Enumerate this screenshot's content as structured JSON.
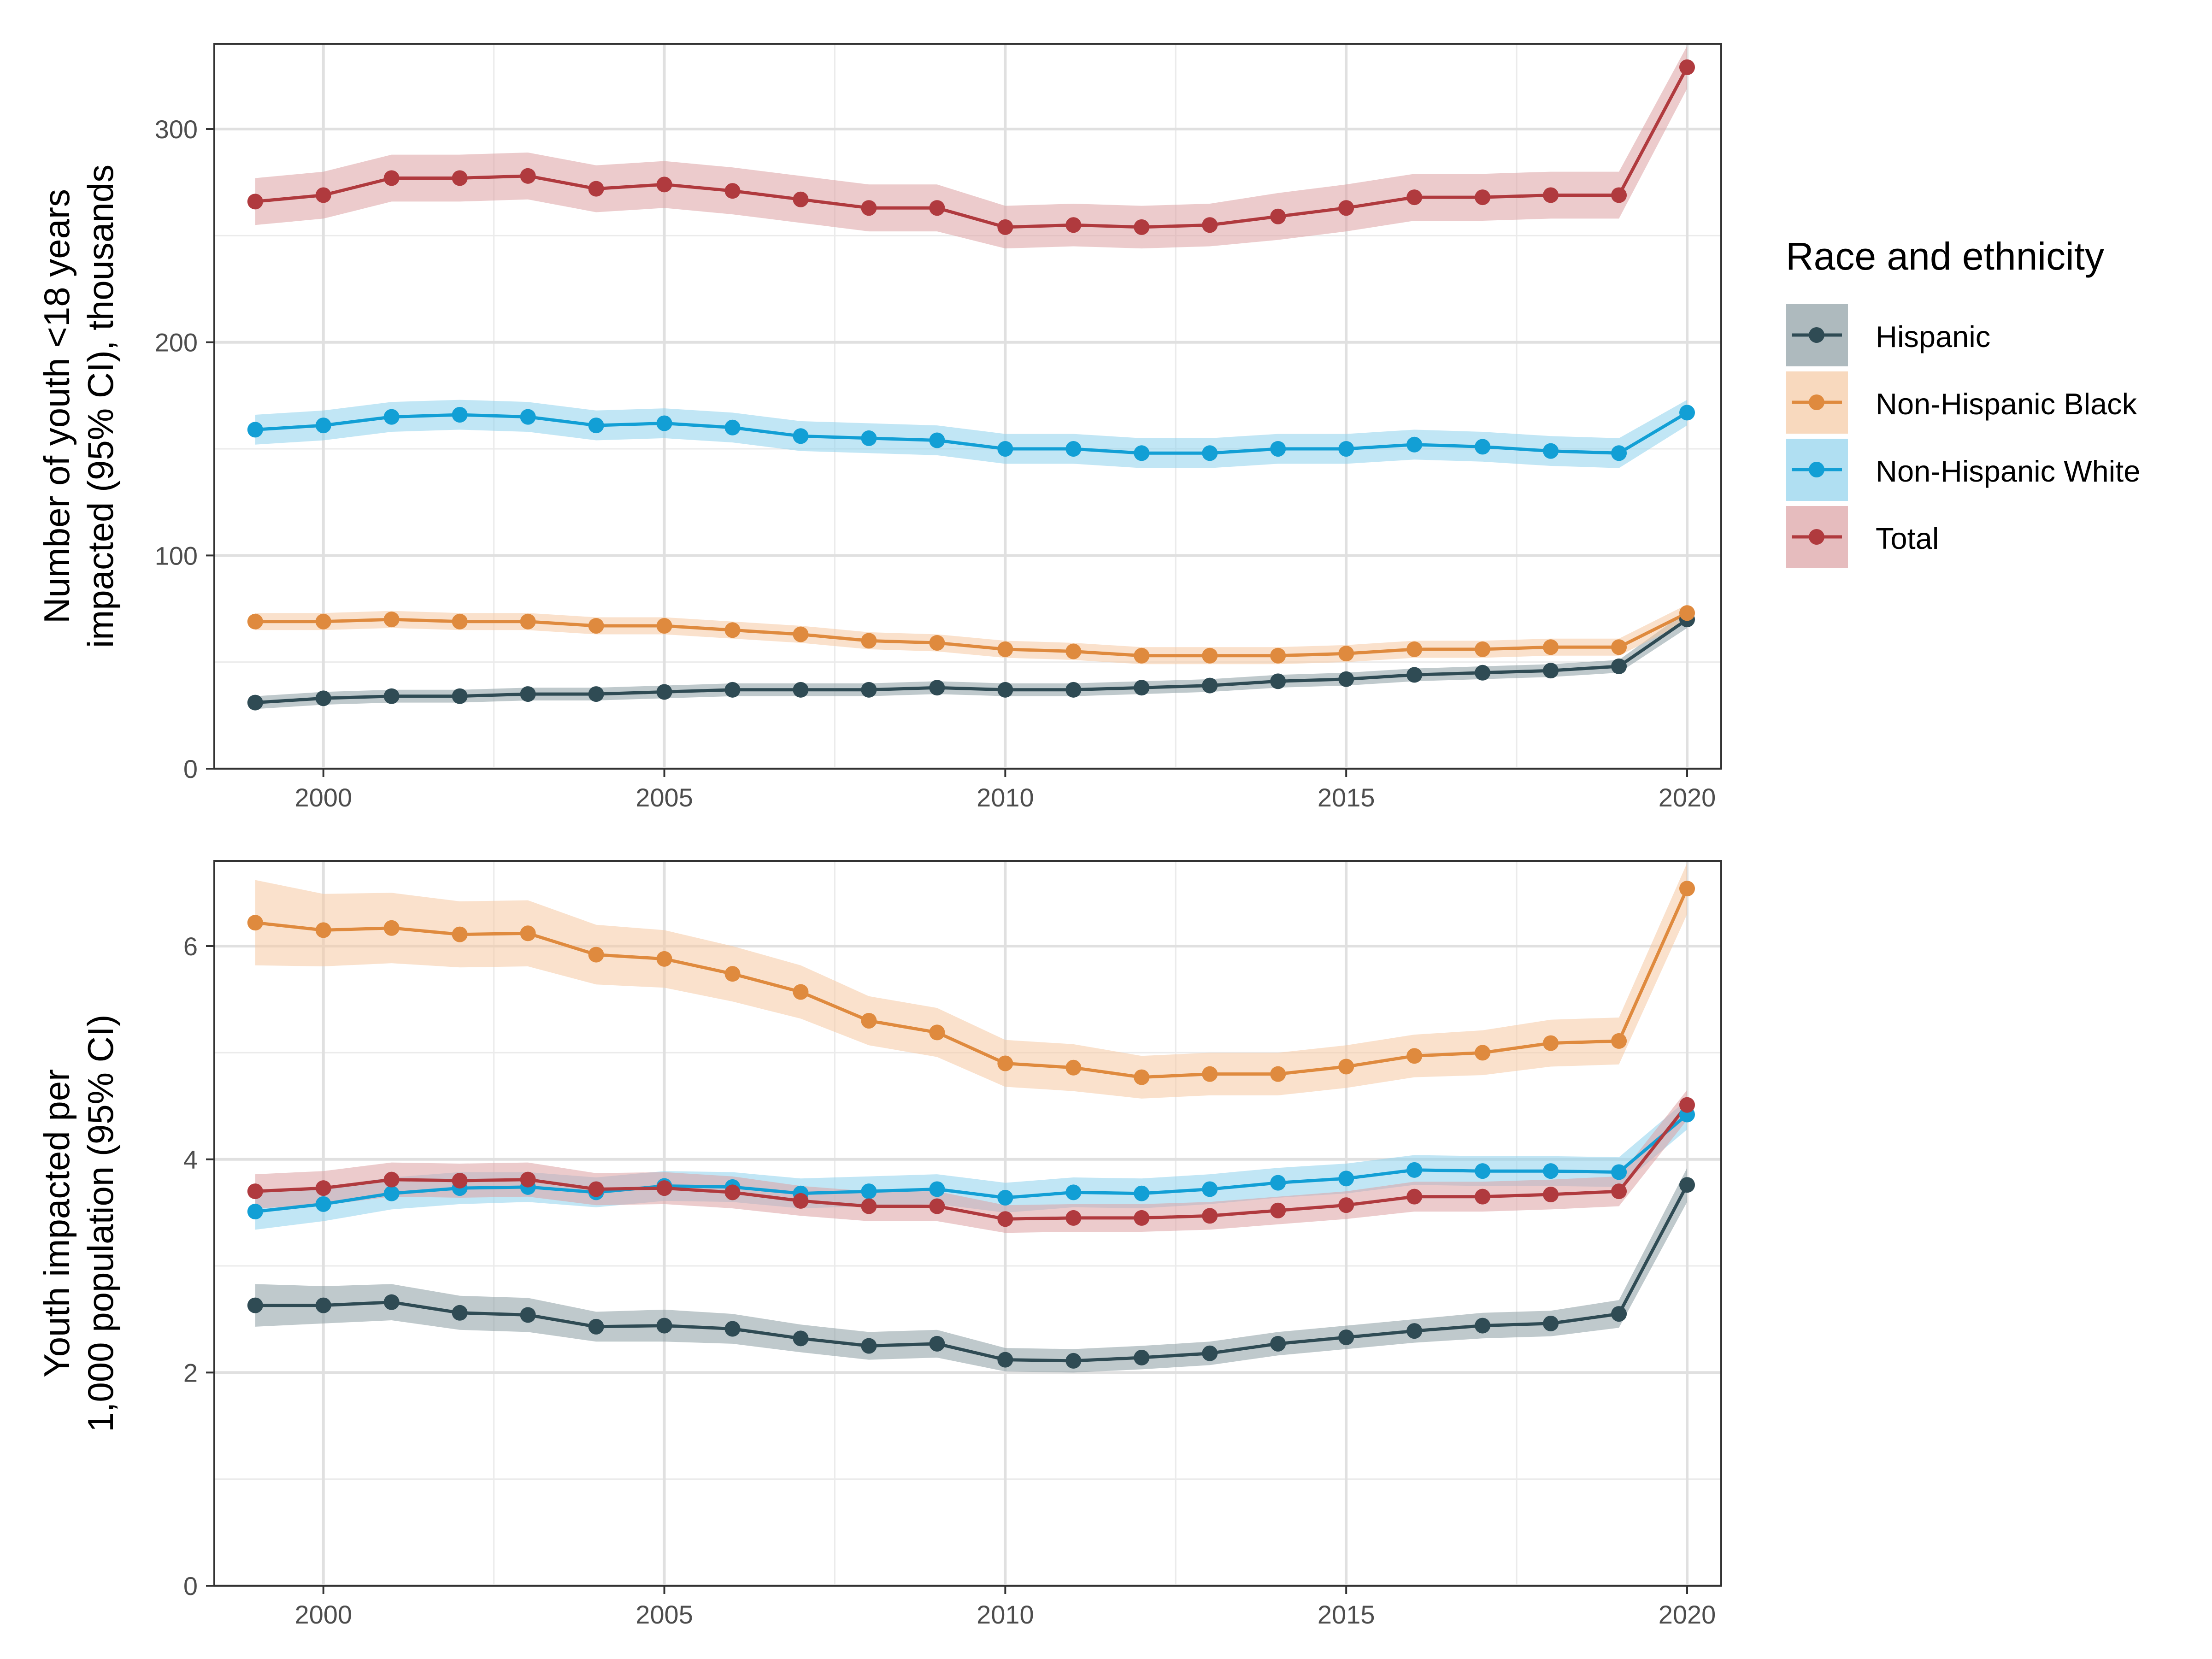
{
  "chart_data": [
    {
      "type": "line",
      "title": "",
      "xlabel": "",
      "ylabel_lines": [
        "Number of youth <18 years",
        "impacted (95% CI), thousands"
      ],
      "x": [
        1999,
        2000,
        2001,
        2002,
        2003,
        2004,
        2005,
        2006,
        2007,
        2008,
        2009,
        2010,
        2011,
        2012,
        2013,
        2014,
        2015,
        2016,
        2017,
        2018,
        2019,
        2020
      ],
      "xlim": [
        1998.4,
        2020.5
      ],
      "ylim": [
        0,
        340
      ],
      "x_ticks": [
        "2000",
        "2005",
        "2010",
        "2015",
        "2020"
      ],
      "y_ticks": [
        "0",
        "100",
        "200",
        "300"
      ],
      "grid": true,
      "series": [
        {
          "name": "Hispanic",
          "values": [
            31,
            33,
            34,
            34,
            35,
            35,
            36,
            37,
            37,
            37,
            38,
            37,
            37,
            38,
            39,
            41,
            42,
            44,
            45,
            46,
            48,
            70
          ],
          "ci_lower": [
            28,
            30,
            31,
            31,
            32,
            32,
            33,
            34,
            34,
            34,
            35,
            34,
            34,
            35,
            36,
            38,
            39,
            41,
            42,
            43,
            45,
            66
          ],
          "ci_upper": [
            34,
            36,
            37,
            37,
            38,
            38,
            39,
            40,
            40,
            40,
            41,
            40,
            40,
            41,
            42,
            44,
            45,
            47,
            48,
            49,
            51,
            74
          ]
        },
        {
          "name": "Non-Hispanic Black",
          "values": [
            69,
            69,
            70,
            69,
            69,
            67,
            67,
            65,
            63,
            60,
            59,
            56,
            55,
            53,
            53,
            53,
            54,
            56,
            56,
            57,
            57,
            73
          ],
          "ci_lower": [
            65,
            65,
            66,
            65,
            65,
            63,
            63,
            61,
            59,
            56,
            55,
            52,
            51,
            49,
            49,
            49,
            50,
            52,
            52,
            53,
            53,
            69
          ],
          "ci_upper": [
            73,
            73,
            74,
            73,
            73,
            71,
            71,
            69,
            67,
            64,
            63,
            60,
            59,
            57,
            57,
            57,
            58,
            60,
            60,
            61,
            61,
            77
          ]
        },
        {
          "name": "Non-Hispanic White",
          "values": [
            159,
            161,
            165,
            166,
            165,
            161,
            162,
            160,
            156,
            155,
            154,
            150,
            150,
            148,
            148,
            150,
            150,
            152,
            151,
            149,
            148,
            167
          ],
          "ci_lower": [
            152,
            154,
            158,
            159,
            158,
            154,
            155,
            153,
            149,
            148,
            147,
            143,
            143,
            141,
            141,
            143,
            143,
            145,
            144,
            142,
            141,
            161
          ],
          "ci_upper": [
            166,
            168,
            172,
            173,
            172,
            168,
            169,
            167,
            163,
            162,
            161,
            157,
            157,
            155,
            155,
            157,
            157,
            159,
            158,
            156,
            155,
            173
          ]
        },
        {
          "name": "Total",
          "values": [
            266,
            269,
            277,
            277,
            278,
            272,
            274,
            271,
            267,
            263,
            263,
            254,
            255,
            254,
            255,
            259,
            263,
            268,
            268,
            269,
            269,
            329
          ],
          "ci_lower": [
            255,
            258,
            266,
            266,
            267,
            261,
            263,
            260,
            256,
            252,
            252,
            244,
            245,
            244,
            245,
            248,
            252,
            257,
            257,
            258,
            258,
            319
          ],
          "ci_upper": [
            277,
            280,
            288,
            288,
            289,
            283,
            285,
            282,
            278,
            274,
            274,
            264,
            265,
            264,
            265,
            270,
            274,
            279,
            279,
            280,
            280,
            339
          ]
        }
      ]
    },
    {
      "type": "line",
      "title": "",
      "xlabel": "",
      "ylabel_lines": [
        "Youth impacted per",
        "1,000 population (95% CI)"
      ],
      "x": [
        1999,
        2000,
        2001,
        2002,
        2003,
        2004,
        2005,
        2006,
        2007,
        2008,
        2009,
        2010,
        2011,
        2012,
        2013,
        2014,
        2015,
        2016,
        2017,
        2018,
        2019,
        2020
      ],
      "xlim": [
        1998.4,
        2020.5
      ],
      "ylim": [
        0,
        6.8
      ],
      "x_ticks": [
        "2000",
        "2005",
        "2010",
        "2015",
        "2020"
      ],
      "y_ticks": [
        "0",
        "2",
        "4",
        "6"
      ],
      "grid": true,
      "series": [
        {
          "name": "Hispanic",
          "values": [
            2.63,
            2.63,
            2.66,
            2.56,
            2.54,
            2.43,
            2.44,
            2.41,
            2.32,
            2.25,
            2.27,
            2.12,
            2.11,
            2.14,
            2.18,
            2.27,
            2.33,
            2.39,
            2.44,
            2.46,
            2.55,
            3.76
          ],
          "ci_lower": [
            2.43,
            2.46,
            2.49,
            2.4,
            2.38,
            2.29,
            2.29,
            2.27,
            2.19,
            2.12,
            2.14,
            2.01,
            2.0,
            2.03,
            2.07,
            2.16,
            2.22,
            2.28,
            2.32,
            2.34,
            2.42,
            3.6
          ],
          "ci_upper": [
            2.83,
            2.81,
            2.83,
            2.72,
            2.7,
            2.57,
            2.59,
            2.55,
            2.45,
            2.38,
            2.4,
            2.23,
            2.22,
            2.25,
            2.29,
            2.38,
            2.44,
            2.5,
            2.56,
            2.58,
            2.68,
            3.92
          ]
        },
        {
          "name": "Non-Hispanic Black",
          "values": [
            6.22,
            6.15,
            6.17,
            6.11,
            6.12,
            5.92,
            5.88,
            5.74,
            5.57,
            5.3,
            5.19,
            4.9,
            4.86,
            4.77,
            4.8,
            4.8,
            4.87,
            4.97,
            5.0,
            5.09,
            5.11,
            6.54
          ],
          "ci_lower": [
            5.82,
            5.81,
            5.84,
            5.8,
            5.81,
            5.64,
            5.61,
            5.48,
            5.32,
            5.07,
            4.96,
            4.68,
            4.64,
            4.57,
            4.6,
            4.6,
            4.67,
            4.77,
            4.79,
            4.87,
            4.89,
            6.3
          ],
          "ci_upper": [
            6.62,
            6.49,
            6.5,
            6.42,
            6.43,
            6.2,
            6.15,
            6.0,
            5.82,
            5.53,
            5.42,
            5.12,
            5.08,
            4.97,
            5.0,
            5.0,
            5.07,
            5.17,
            5.21,
            5.31,
            5.33,
            6.78
          ]
        },
        {
          "name": "Non-Hispanic White",
          "values": [
            3.51,
            3.58,
            3.68,
            3.73,
            3.74,
            3.69,
            3.75,
            3.74,
            3.68,
            3.7,
            3.72,
            3.64,
            3.69,
            3.68,
            3.72,
            3.78,
            3.82,
            3.9,
            3.89,
            3.89,
            3.88,
            4.42
          ],
          "ci_lower": [
            3.34,
            3.42,
            3.53,
            3.58,
            3.6,
            3.55,
            3.61,
            3.6,
            3.54,
            3.56,
            3.58,
            3.5,
            3.55,
            3.54,
            3.58,
            3.64,
            3.68,
            3.76,
            3.75,
            3.75,
            3.74,
            4.28
          ],
          "ci_upper": [
            3.68,
            3.74,
            3.83,
            3.88,
            3.88,
            3.83,
            3.89,
            3.88,
            3.82,
            3.84,
            3.86,
            3.78,
            3.83,
            3.82,
            3.86,
            3.92,
            3.96,
            4.04,
            4.03,
            4.03,
            4.02,
            4.56
          ]
        },
        {
          "name": "Total",
          "values": [
            3.7,
            3.73,
            3.81,
            3.8,
            3.81,
            3.72,
            3.73,
            3.69,
            3.61,
            3.56,
            3.56,
            3.44,
            3.45,
            3.45,
            3.47,
            3.52,
            3.57,
            3.65,
            3.65,
            3.67,
            3.7,
            4.51
          ],
          "ci_lower": [
            3.54,
            3.57,
            3.65,
            3.64,
            3.65,
            3.57,
            3.58,
            3.54,
            3.47,
            3.42,
            3.42,
            3.31,
            3.32,
            3.32,
            3.34,
            3.39,
            3.44,
            3.51,
            3.51,
            3.53,
            3.56,
            4.37
          ],
          "ci_upper": [
            3.86,
            3.89,
            3.97,
            3.96,
            3.97,
            3.87,
            3.88,
            3.84,
            3.75,
            3.7,
            3.7,
            3.57,
            3.58,
            3.58,
            3.6,
            3.65,
            3.7,
            3.79,
            3.79,
            3.81,
            3.84,
            4.65
          ]
        }
      ]
    }
  ],
  "legend": {
    "title": "Race and ethnicity",
    "placement": "right",
    "entries": [
      {
        "name": "Hispanic",
        "color": "#2f4b54",
        "fill": "#8b9ca2"
      },
      {
        "name": "Non-Hispanic Black",
        "color": "#df8a3e",
        "fill": "#f5c9a3"
      },
      {
        "name": "Non-Hispanic White",
        "color": "#129fd5",
        "fill": "#8ed2ec"
      },
      {
        "name": "Total",
        "color": "#b03a3e",
        "fill": "#dca0a3"
      }
    ]
  }
}
